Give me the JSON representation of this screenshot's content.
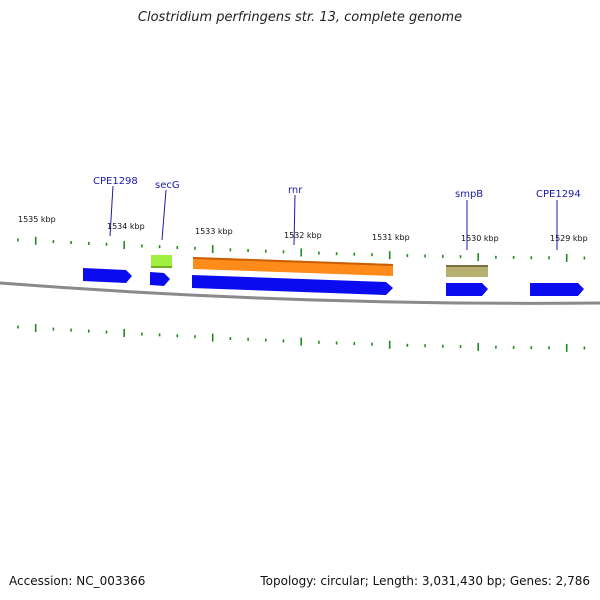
{
  "header": {
    "title": "Clostridium perfringens str. 13, complete genome"
  },
  "footer": {
    "accession": "Accession: NC_003366",
    "summary": "Topology: circular; Length: 3,031,430 bp; Genes: 2,786"
  },
  "ruler": {
    "labels": [
      "1535 kbp",
      "1534 kbp",
      "1533 kbp",
      "1532 kbp",
      "1531 kbp",
      "1530 kbp",
      "1529 kbp"
    ]
  },
  "genes": [
    "CPE1298",
    "secG",
    "rnr",
    "smpB",
    "CPE1294"
  ],
  "colors": {
    "cds": "#0b0bf0",
    "gene_secG": "#9ff040",
    "gene_rnr": "#ff8c1a",
    "gene_smpB": "#b8b070",
    "backbone": "#8a8a8a",
    "ticks": "#1f8a1f",
    "label": "#1a1aa8"
  }
}
